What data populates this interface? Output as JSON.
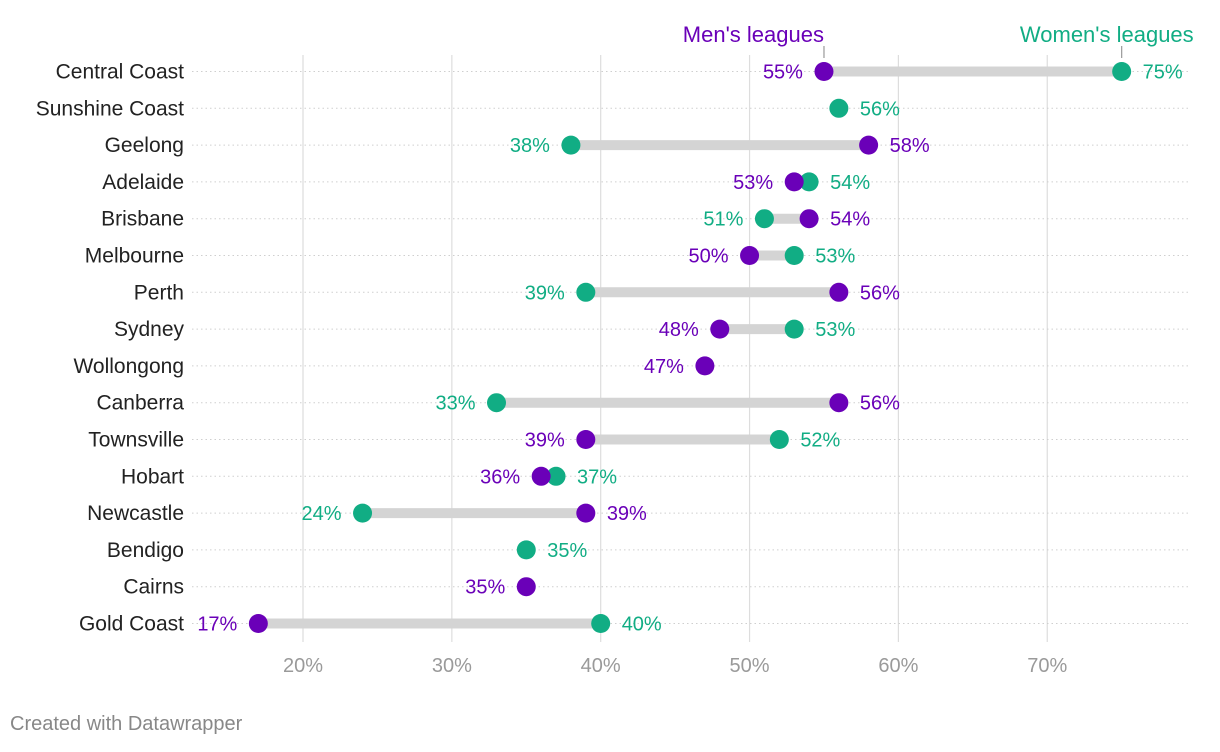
{
  "chart_data": {
    "type": "dot-range",
    "series": [
      {
        "name": "Men's leagues",
        "key": "men",
        "color": "#6a00b8"
      },
      {
        "name": "Women's leagues",
        "key": "women",
        "color": "#11ad84"
      }
    ],
    "rows": [
      {
        "category": "Central Coast",
        "men": 55,
        "women": 75
      },
      {
        "category": "Sunshine Coast",
        "men": null,
        "women": 56
      },
      {
        "category": "Geelong",
        "men": 58,
        "women": 38
      },
      {
        "category": "Adelaide",
        "men": 53,
        "women": 54
      },
      {
        "category": "Brisbane",
        "men": 54,
        "women": 51
      },
      {
        "category": "Melbourne",
        "men": 50,
        "women": 53
      },
      {
        "category": "Perth",
        "men": 56,
        "women": 39
      },
      {
        "category": "Sydney",
        "men": 48,
        "women": 53
      },
      {
        "category": "Wollongong",
        "men": 47,
        "women": null
      },
      {
        "category": "Canberra",
        "men": 56,
        "women": 33
      },
      {
        "category": "Townsville",
        "men": 39,
        "women": 52
      },
      {
        "category": "Hobart",
        "men": 36,
        "women": 37
      },
      {
        "category": "Newcastle",
        "men": 39,
        "women": 24
      },
      {
        "category": "Bendigo",
        "men": null,
        "women": 35
      },
      {
        "category": "Cairns",
        "men": 35,
        "women": null
      },
      {
        "category": "Gold Coast",
        "men": 17,
        "women": 40
      }
    ],
    "x_ticks": [
      "20%",
      "30%",
      "40%",
      "50%",
      "60%",
      "70%"
    ],
    "x_tick_values": [
      20,
      30,
      40,
      50,
      60,
      70
    ],
    "xlim": [
      12.5,
      80
    ],
    "value_suffix": "%",
    "grid": true,
    "legend_placement": "top-right (labels pointing at first row)"
  },
  "credit": "Created with Datawrapper"
}
